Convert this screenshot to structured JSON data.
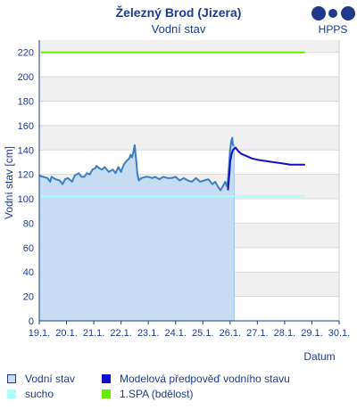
{
  "chart_data": {
    "type": "line",
    "title": "Železný Brod (Jizera)",
    "subtitle": "Vodní stav",
    "ylabel": "Vodní stav [cm]",
    "xlabel": "Datum",
    "ylim": [
      0,
      230
    ],
    "xlim": [
      0,
      11
    ],
    "yticks": [
      0,
      20,
      40,
      60,
      80,
      100,
      120,
      140,
      160,
      180,
      200,
      220
    ],
    "xtick_labels": [
      "19.1.",
      "20.1.",
      "21.1.",
      "22.1.",
      "23.1.",
      "24.1.",
      "25.1.",
      "26.1.",
      "27.1.",
      "28.1.",
      "29.1.",
      "30.1."
    ],
    "thresholds": [
      {
        "name": "sucho",
        "value": 102,
        "color": "#aaffff"
      },
      {
        "name": "1.SPA (bdělost)",
        "value": 220,
        "color": "#66ee00"
      }
    ],
    "series": [
      {
        "name": "Vodní stav",
        "color": "#3a7fc0",
        "fill": "#c6dcf2",
        "points": [
          [
            0.0,
            119
          ],
          [
            0.15,
            118
          ],
          [
            0.3,
            117
          ],
          [
            0.4,
            114
          ],
          [
            0.45,
            118
          ],
          [
            0.6,
            116
          ],
          [
            0.75,
            115
          ],
          [
            0.85,
            112
          ],
          [
            0.95,
            116
          ],
          [
            1.05,
            117
          ],
          [
            1.2,
            114
          ],
          [
            1.3,
            119
          ],
          [
            1.45,
            121
          ],
          [
            1.55,
            118
          ],
          [
            1.65,
            118
          ],
          [
            1.75,
            121
          ],
          [
            1.85,
            120
          ],
          [
            1.95,
            124
          ],
          [
            2.05,
            125
          ],
          [
            2.1,
            127
          ],
          [
            2.2,
            125
          ],
          [
            2.3,
            124
          ],
          [
            2.4,
            126
          ],
          [
            2.55,
            122
          ],
          [
            2.7,
            124
          ],
          [
            2.8,
            121
          ],
          [
            2.9,
            126
          ],
          [
            3.0,
            122
          ],
          [
            3.1,
            128
          ],
          [
            3.2,
            131
          ],
          [
            3.3,
            133
          ],
          [
            3.35,
            136
          ],
          [
            3.4,
            134
          ],
          [
            3.45,
            138
          ],
          [
            3.5,
            144
          ],
          [
            3.55,
            133
          ],
          [
            3.6,
            120
          ],
          [
            3.65,
            115
          ],
          [
            3.75,
            117
          ],
          [
            3.9,
            118
          ],
          [
            4.0,
            118
          ],
          [
            4.15,
            117
          ],
          [
            4.25,
            118
          ],
          [
            4.4,
            116
          ],
          [
            4.55,
            118
          ],
          [
            4.7,
            117
          ],
          [
            4.85,
            117
          ],
          [
            5.0,
            118
          ],
          [
            5.15,
            115
          ],
          [
            5.3,
            117
          ],
          [
            5.45,
            115
          ],
          [
            5.6,
            114
          ],
          [
            5.75,
            117
          ],
          [
            5.9,
            114
          ],
          [
            6.05,
            115
          ],
          [
            6.2,
            116
          ],
          [
            6.35,
            112
          ],
          [
            6.45,
            114
          ],
          [
            6.55,
            110
          ],
          [
            6.65,
            107
          ],
          [
            6.75,
            111
          ],
          [
            6.82,
            114
          ],
          [
            6.88,
            110
          ],
          [
            6.92,
            115
          ],
          [
            6.97,
            130
          ],
          [
            7.0,
            140
          ],
          [
            7.05,
            148
          ],
          [
            7.08,
            150
          ],
          [
            7.1,
            144
          ],
          [
            7.15,
            144
          ]
        ]
      },
      {
        "name": "Modelová předpověď vodního stavu",
        "color": "#1010c8",
        "points": [
          [
            6.92,
            107
          ],
          [
            6.95,
            115
          ],
          [
            6.98,
            122
          ],
          [
            7.0,
            130
          ],
          [
            7.05,
            136
          ],
          [
            7.1,
            140
          ],
          [
            7.2,
            142
          ],
          [
            7.3,
            139
          ],
          [
            7.4,
            137
          ],
          [
            7.6,
            135
          ],
          [
            7.8,
            133
          ],
          [
            8.0,
            132
          ],
          [
            8.3,
            131
          ],
          [
            8.6,
            130
          ],
          [
            8.9,
            129
          ],
          [
            9.2,
            128
          ],
          [
            9.5,
            128
          ],
          [
            9.75,
            128
          ]
        ]
      }
    ]
  },
  "legend": [
    {
      "label": "Vodní stav",
      "color": "#c6dcf2",
      "border": "#1f3a8c"
    },
    {
      "label": "Modelová předpověď vodního stavu",
      "color": "#1010c8",
      "border": "#1010c8"
    },
    {
      "label": "sucho",
      "color": "#aaffff",
      "border": "#aaffff"
    },
    {
      "label": "1.SPA (bdělost)",
      "color": "#66ee00",
      "border": "#66ee00"
    }
  ],
  "logo": {
    "text": "HPPS",
    "color": "#1f3a8c"
  }
}
